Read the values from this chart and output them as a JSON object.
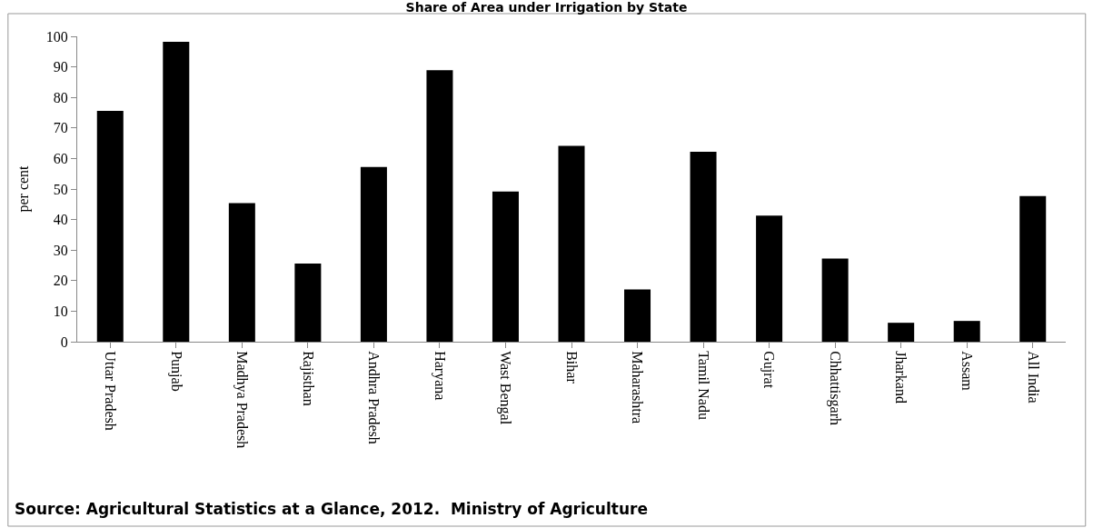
{
  "chart_data": {
    "type": "bar",
    "title": "Share of Area under Irrigation by State",
    "ylabel": "per cent",
    "categories": [
      "Uttar Pradesh",
      "Punjab",
      "Madhya Pradesh",
      "Rajisthan",
      "Andhra Pradesh",
      "Haryana",
      "Wast Bengal",
      "Bihar",
      "Maharashtra",
      "Tamil Nadu",
      "Gujrat",
      "Chhattisgarh",
      "Jharkand",
      "Assam",
      "All India"
    ],
    "values": [
      75.6,
      98.2,
      45.4,
      25.6,
      57.2,
      88.9,
      49.2,
      64.1,
      17.1,
      62.2,
      41.3,
      27.2,
      6.2,
      6.8,
      47.7
    ],
    "color": "#000000",
    "ylim": [
      0,
      100
    ],
    "yticks": [
      0,
      10,
      20,
      30,
      40,
      50,
      60,
      70,
      80,
      90,
      100
    ],
    "grid": false,
    "annotations": [
      "Source: Agricultural Statistics at a Glance, 2012.  Ministry of Agriculture"
    ]
  }
}
